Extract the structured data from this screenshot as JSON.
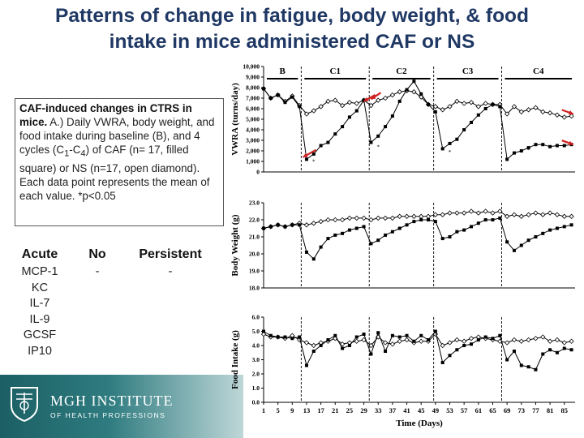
{
  "slide": {
    "title_line1": "Patterns of change in fatigue, body weight, & food",
    "title_line2": "intake in mice administered CAF or NS"
  },
  "caption": {
    "bold": "CAF-induced changes in CTRS in mice.",
    "text": " A.) Daily VWRA, body weight, and food intake during baseline (B), and 4 cycles (C",
    "sub1": "1",
    "dash": "-C",
    "sub4": "4",
    "text2": ") of CAF (n= 17, filled square) or NS (n=17, open diamond). Each data point represents the mean of each value. *p<0.05"
  },
  "cytokines": {
    "acute_header": "Acute",
    "acute_items": [
      "MCP-1",
      "KC",
      "IL-7",
      "IL-9",
      "GCSF",
      "IP10"
    ],
    "no_header": "No",
    "no_value": "-",
    "persistent_header": "Persistent",
    "persistent_value": "-"
  },
  "footer": {
    "institute": "MGH INSTITUTE",
    "subtitle": "OF HEALTH PROFESSIONS",
    "brand_color": "#1b5f64"
  },
  "chart_data": {
    "type": "line",
    "xlabel": "Time (Days)",
    "x_ticks": [
      1,
      5,
      9,
      13,
      17,
      21,
      25,
      29,
      33,
      37,
      41,
      45,
      49,
      53,
      57,
      61,
      65,
      69,
      73,
      77,
      81,
      85
    ],
    "xlim": [
      1,
      88
    ],
    "phases": [
      "B",
      "C1",
      "C2",
      "C3",
      "C4"
    ],
    "phase_boundaries": [
      11.5,
      30.5,
      48.5,
      67.5
    ],
    "legend": {
      "caf": "CAF (filled square)",
      "ns": "NS (open diamond)"
    },
    "panels": [
      {
        "name": "vwra",
        "ylabel": "VWRA (turns/day)",
        "ylim": [
          0,
          10000
        ],
        "y_ticks": [
          "0",
          "1,000",
          "2,000",
          "3,000",
          "4,000",
          "5,000",
          "6,000",
          "7,000",
          "8,000",
          "9,000",
          "10,000"
        ],
        "y_tick_values": [
          0,
          1000,
          2000,
          3000,
          4000,
          5000,
          6000,
          7000,
          8000,
          9000,
          10000
        ],
        "series": [
          {
            "name": "NS",
            "x": [
              1,
              3,
              5,
              7,
              9,
              11,
              13,
              15,
              17,
              19,
              21,
              23,
              25,
              27,
              29,
              31,
              33,
              35,
              37,
              39,
              41,
              43,
              45,
              47,
              49,
              51,
              53,
              55,
              57,
              59,
              61,
              63,
              65,
              67,
              69,
              71,
              73,
              75,
              77,
              79,
              81,
              83,
              85,
              87
            ],
            "y": [
              7900,
              7000,
              7300,
              6700,
              7200,
              6300,
              5500,
              5800,
              6200,
              6700,
              6800,
              6300,
              6600,
              6500,
              6800,
              6300,
              6800,
              7000,
              7300,
              7600,
              7700,
              7600,
              7100,
              6400,
              6200,
              5900,
              6200,
              6700,
              6500,
              6600,
              6200,
              6500,
              6400,
              6400,
              5500,
              6200,
              5700,
              5900,
              6100,
              5700,
              5600,
              5400,
              5200,
              5300
            ]
          },
          {
            "name": "CAF",
            "x": [
              1,
              3,
              5,
              7,
              9,
              11,
              13,
              15,
              17,
              19,
              21,
              23,
              25,
              27,
              29,
              31,
              33,
              35,
              37,
              39,
              41,
              43,
              45,
              47,
              49,
              51,
              53,
              55,
              57,
              59,
              61,
              63,
              65,
              67,
              69,
              71,
              73,
              75,
              77,
              79,
              81,
              83,
              85,
              87
            ],
            "y": [
              7900,
              7000,
              7300,
              6600,
              7100,
              6200,
              1200,
              1700,
              2500,
              2800,
              3600,
              4300,
              5200,
              5800,
              6800,
              2800,
              3400,
              4300,
              5300,
              6700,
              7800,
              8600,
              7400,
              6400,
              5700,
              2200,
              2700,
              3100,
              4000,
              4700,
              5400,
              6000,
              6400,
              6200,
              1200,
              1800,
              2000,
              2300,
              2600,
              2600,
              2400,
              2500,
              2500,
              2600
            ]
          }
        ],
        "significance_marks": [
          "*",
          "*",
          "*",
          "*"
        ]
      },
      {
        "name": "body_weight",
        "ylabel": "Body Weight (g)",
        "ylim": [
          18,
          23
        ],
        "y_ticks": [
          "18.0",
          "19.0",
          "20.0",
          "21.0",
          "22.0",
          "23.0"
        ],
        "y_tick_values": [
          18,
          19,
          20,
          21,
          22,
          23
        ],
        "series": [
          {
            "name": "NS",
            "x": [
              1,
              3,
              5,
              7,
              9,
              11,
              13,
              15,
              17,
              19,
              21,
              23,
              25,
              27,
              29,
              31,
              33,
              35,
              37,
              39,
              41,
              43,
              45,
              47,
              49,
              51,
              53,
              55,
              57,
              59,
              61,
              63,
              65,
              67,
              69,
              71,
              73,
              75,
              77,
              79,
              81,
              83,
              85,
              87
            ],
            "y": [
              21.5,
              21.6,
              21.7,
              21.6,
              21.7,
              21.8,
              21.7,
              21.8,
              21.9,
              22.0,
              22.0,
              22.0,
              22.1,
              22.1,
              22.1,
              22.0,
              22.1,
              22.1,
              22.1,
              22.2,
              22.2,
              22.2,
              22.2,
              22.2,
              22.3,
              22.3,
              22.4,
              22.4,
              22.4,
              22.5,
              22.4,
              22.5,
              22.4,
              22.5,
              22.2,
              22.3,
              22.2,
              22.3,
              22.4,
              22.3,
              22.4,
              22.3,
              22.2,
              22.2
            ]
          },
          {
            "name": "CAF",
            "x": [
              1,
              3,
              5,
              7,
              9,
              11,
              13,
              15,
              17,
              19,
              21,
              23,
              25,
              27,
              29,
              31,
              33,
              35,
              37,
              39,
              41,
              43,
              45,
              47,
              49,
              51,
              53,
              55,
              57,
              59,
              61,
              63,
              65,
              67,
              69,
              71,
              73,
              75,
              77,
              79,
              81,
              83,
              85,
              87
            ],
            "y": [
              21.5,
              21.6,
              21.7,
              21.6,
              21.7,
              21.7,
              20.1,
              19.7,
              20.4,
              20.9,
              21.1,
              21.2,
              21.4,
              21.5,
              21.6,
              20.6,
              20.8,
              21.1,
              21.3,
              21.5,
              21.7,
              21.9,
              22.0,
              22.0,
              21.9,
              20.9,
              21.0,
              21.3,
              21.4,
              21.6,
              21.8,
              22.0,
              22.0,
              22.1,
              20.7,
              20.2,
              20.5,
              20.8,
              21.0,
              21.2,
              21.4,
              21.5,
              21.6,
              21.7
            ]
          }
        ]
      },
      {
        "name": "food_intake",
        "ylabel": "Food Intake (g)",
        "ylim": [
          0,
          6
        ],
        "y_ticks": [
          "0.0",
          "1.0",
          "2.0",
          "3.0",
          "4.0",
          "5.0",
          "6.0"
        ],
        "y_tick_values": [
          0,
          1,
          2,
          3,
          4,
          5,
          6
        ],
        "series": [
          {
            "name": "NS",
            "x": [
              1,
              3,
              5,
              7,
              9,
              11,
              13,
              15,
              17,
              19,
              21,
              23,
              25,
              27,
              29,
              31,
              33,
              35,
              37,
              39,
              41,
              43,
              45,
              47,
              49,
              51,
              53,
              55,
              57,
              59,
              61,
              63,
              65,
              67,
              69,
              71,
              73,
              75,
              77,
              79,
              81,
              83,
              85,
              87
            ],
            "y": [
              4.8,
              4.6,
              4.6,
              4.5,
              4.7,
              4.4,
              4.2,
              4.0,
              4.2,
              4.3,
              4.5,
              4.1,
              4.2,
              4.3,
              4.4,
              4.0,
              4.6,
              4.2,
              4.1,
              4.3,
              4.4,
              4.2,
              4.3,
              4.3,
              4.8,
              4.0,
              4.2,
              4.4,
              4.3,
              4.5,
              4.6,
              4.5,
              4.4,
              4.3,
              4.2,
              4.4,
              4.3,
              4.4,
              4.5,
              4.6,
              4.3,
              4.4,
              4.2,
              4.3
            ]
          },
          {
            "name": "CAF",
            "x": [
              1,
              3,
              5,
              7,
              9,
              11,
              13,
              15,
              17,
              19,
              21,
              23,
              25,
              27,
              29,
              31,
              33,
              35,
              37,
              39,
              41,
              43,
              45,
              47,
              49,
              51,
              53,
              55,
              57,
              59,
              61,
              63,
              65,
              67,
              69,
              71,
              73,
              75,
              77,
              79,
              81,
              83,
              85,
              87
            ],
            "y": [
              5.0,
              4.7,
              4.6,
              4.6,
              4.5,
              4.6,
              2.6,
              3.6,
              4.0,
              4.4,
              4.7,
              3.8,
              4.0,
              4.6,
              4.8,
              3.4,
              4.9,
              3.6,
              4.7,
              4.6,
              4.7,
              4.3,
              4.7,
              4.4,
              5.0,
              2.8,
              3.3,
              3.7,
              4.0,
              4.1,
              4.4,
              4.6,
              4.5,
              4.7,
              3.0,
              3.6,
              2.6,
              2.5,
              2.3,
              3.4,
              3.7,
              3.5,
              3.8,
              3.7
            ]
          }
        ]
      }
    ]
  }
}
